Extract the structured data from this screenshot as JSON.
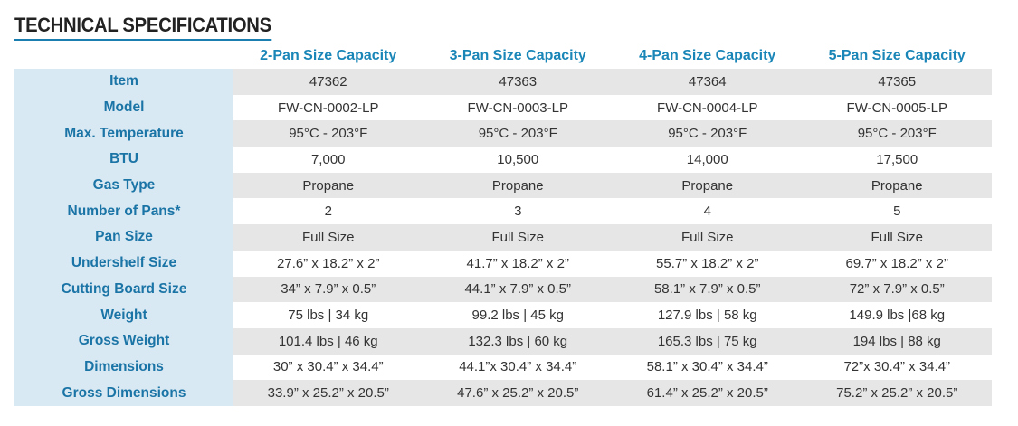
{
  "title": "TECHNICAL SPECIFICATIONS",
  "columns": [
    "2-Pan Size Capacity",
    "3-Pan Size Capacity",
    "4-Pan Size Capacity",
    "5-Pan Size Capacity"
  ],
  "rows": [
    {
      "label": "Item",
      "values": [
        "47362",
        "47363",
        "47364",
        "47365"
      ]
    },
    {
      "label": "Model",
      "values": [
        "FW-CN-0002-LP",
        "FW-CN-0003-LP",
        "FW-CN-0004-LP",
        "FW-CN-0005-LP"
      ]
    },
    {
      "label": "Max. Temperature",
      "values": [
        "95°C - 203°F",
        "95°C - 203°F",
        "95°C - 203°F",
        "95°C - 203°F"
      ]
    },
    {
      "label": "BTU",
      "values": [
        "7,000",
        "10,500",
        "14,000",
        "17,500"
      ]
    },
    {
      "label": "Gas Type",
      "values": [
        "Propane",
        "Propane",
        "Propane",
        "Propane"
      ]
    },
    {
      "label": "Number of Pans*",
      "values": [
        "2",
        "3",
        "4",
        "5"
      ]
    },
    {
      "label": "Pan Size",
      "values": [
        "Full Size",
        "Full Size",
        "Full Size",
        "Full Size"
      ]
    },
    {
      "label": "Undershelf Size",
      "values": [
        "27.6” x 18.2” x 2”",
        "41.7” x 18.2” x 2”",
        "55.7” x 18.2” x 2”",
        "69.7” x 18.2” x 2”"
      ]
    },
    {
      "label": "Cutting Board Size",
      "values": [
        "34” x 7.9” x 0.5”",
        "44.1” x 7.9” x 0.5”",
        "58.1” x 7.9” x 0.5”",
        "72” x 7.9” x 0.5”"
      ]
    },
    {
      "label": "Weight",
      "values": [
        "75 lbs | 34 kg",
        "99.2 lbs | 45 kg",
        "127.9 lbs | 58 kg",
        "149.9 lbs |68 kg"
      ]
    },
    {
      "label": "Gross Weight",
      "values": [
        "101.4 lbs | 46 kg",
        "132.3 lbs | 60 kg",
        "165.3 lbs | 75 kg",
        "194 lbs | 88 kg"
      ]
    },
    {
      "label": "Dimensions",
      "values": [
        "30” x 30.4” x 34.4”",
        "44.1”x 30.4” x 34.4”",
        "58.1” x 30.4” x 34.4”",
        "72”x 30.4” x 34.4”"
      ]
    },
    {
      "label": "Gross Dimensions",
      "values": [
        "33.9” x 25.2” x 20.5”",
        "47.6” x 25.2” x 20.5”",
        "61.4” x 25.2” x 20.5”",
        "75.2” x 25.2” x 20.5”"
      ]
    }
  ],
  "colors": {
    "accent": "#1a86b8",
    "label_bg": "#d9e9f3",
    "stripe": "#e6e6e6"
  }
}
